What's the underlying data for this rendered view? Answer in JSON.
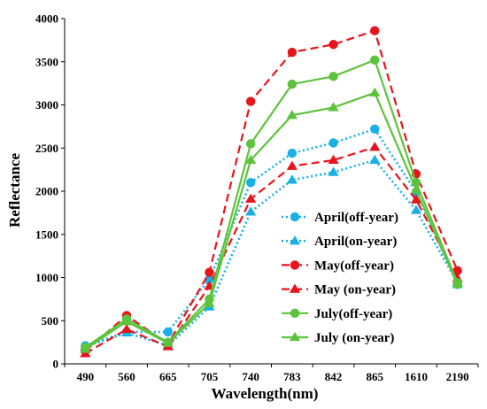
{
  "chart_data": {
    "type": "line",
    "title": "",
    "xlabel": "Wavelength(nm)",
    "ylabel": "Reflectance",
    "categories": [
      "490",
      "560",
      "665",
      "705",
      "740",
      "783",
      "842",
      "865",
      "1610",
      "2190"
    ],
    "ylim": [
      0,
      4000
    ],
    "yticks": [
      0,
      500,
      1000,
      1500,
      2000,
      2500,
      3000,
      3500,
      4000
    ],
    "grid": false,
    "legend_position": "bottom-right",
    "series": [
      {
        "name": "April(off-year)",
        "color": "#1ab0e6",
        "dash": "dotted",
        "marker": "circle",
        "values": [
          210,
          370,
          370,
          980,
          2100,
          2440,
          2560,
          2720,
          1990,
          920
        ]
      },
      {
        "name": "April(on-year)",
        "color": "#1ab0e6",
        "dash": "dotted",
        "marker": "triangle",
        "values": [
          200,
          360,
          210,
          660,
          1760,
          2130,
          2220,
          2360,
          1780,
          940
        ]
      },
      {
        "name": "May(off-year)",
        "color": "#e8141c",
        "dash": "dashed",
        "marker": "circle",
        "values": [
          150,
          560,
          230,
          1060,
          3040,
          3610,
          3700,
          3860,
          2200,
          1080
        ]
      },
      {
        "name": "May (on-year)",
        "color": "#e8141c",
        "dash": "dashed",
        "marker": "triangle",
        "values": [
          120,
          400,
          200,
          900,
          1910,
          2290,
          2360,
          2510,
          1900,
          990
        ]
      },
      {
        "name": "July(off-year)",
        "color": "#5dc33c",
        "dash": "solid",
        "marker": "circle",
        "values": [
          190,
          520,
          250,
          750,
          2550,
          3240,
          3330,
          3520,
          2100,
          940
        ]
      },
      {
        "name": "July (on-year)",
        "color": "#5dc33c",
        "dash": "solid",
        "marker": "triangle",
        "values": [
          170,
          490,
          240,
          700,
          2360,
          2880,
          2970,
          3140,
          2020,
          920
        ]
      }
    ]
  }
}
